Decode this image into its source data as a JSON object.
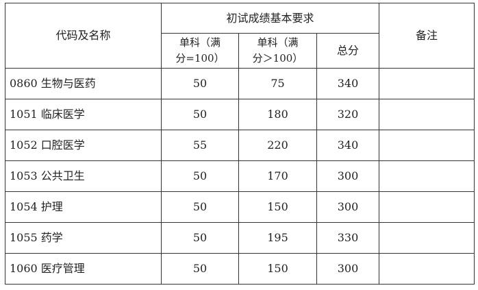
{
  "header": {
    "code_name": "代码及名称",
    "group": "初试成绩基本要求",
    "single_100": [
      "单科（满",
      "分=100）"
    ],
    "single_gt100": [
      "单科（满",
      "分＞100）"
    ],
    "total": "总分",
    "remarks": "备注"
  },
  "rows": [
    {
      "name": "0860  生物与医药",
      "s100": "50",
      "sgt100": "75",
      "total": "340",
      "remark": ""
    },
    {
      "name": "1051  临床医学",
      "s100": "50",
      "sgt100": "180",
      "total": "320",
      "remark": ""
    },
    {
      "name": "1052  口腔医学",
      "s100": "55",
      "sgt100": "220",
      "total": "340",
      "remark": ""
    },
    {
      "name": "1053  公共卫生",
      "s100": "50",
      "sgt100": "170",
      "total": "300",
      "remark": ""
    },
    {
      "name": "1054  护理",
      "s100": "50",
      "sgt100": "150",
      "total": "300",
      "remark": ""
    },
    {
      "name": "1055  药学",
      "s100": "50",
      "sgt100": "195",
      "total": "330",
      "remark": ""
    },
    {
      "name": "1060 医疗管理",
      "s100": "50",
      "sgt100": "150",
      "total": "300",
      "remark": ""
    }
  ]
}
